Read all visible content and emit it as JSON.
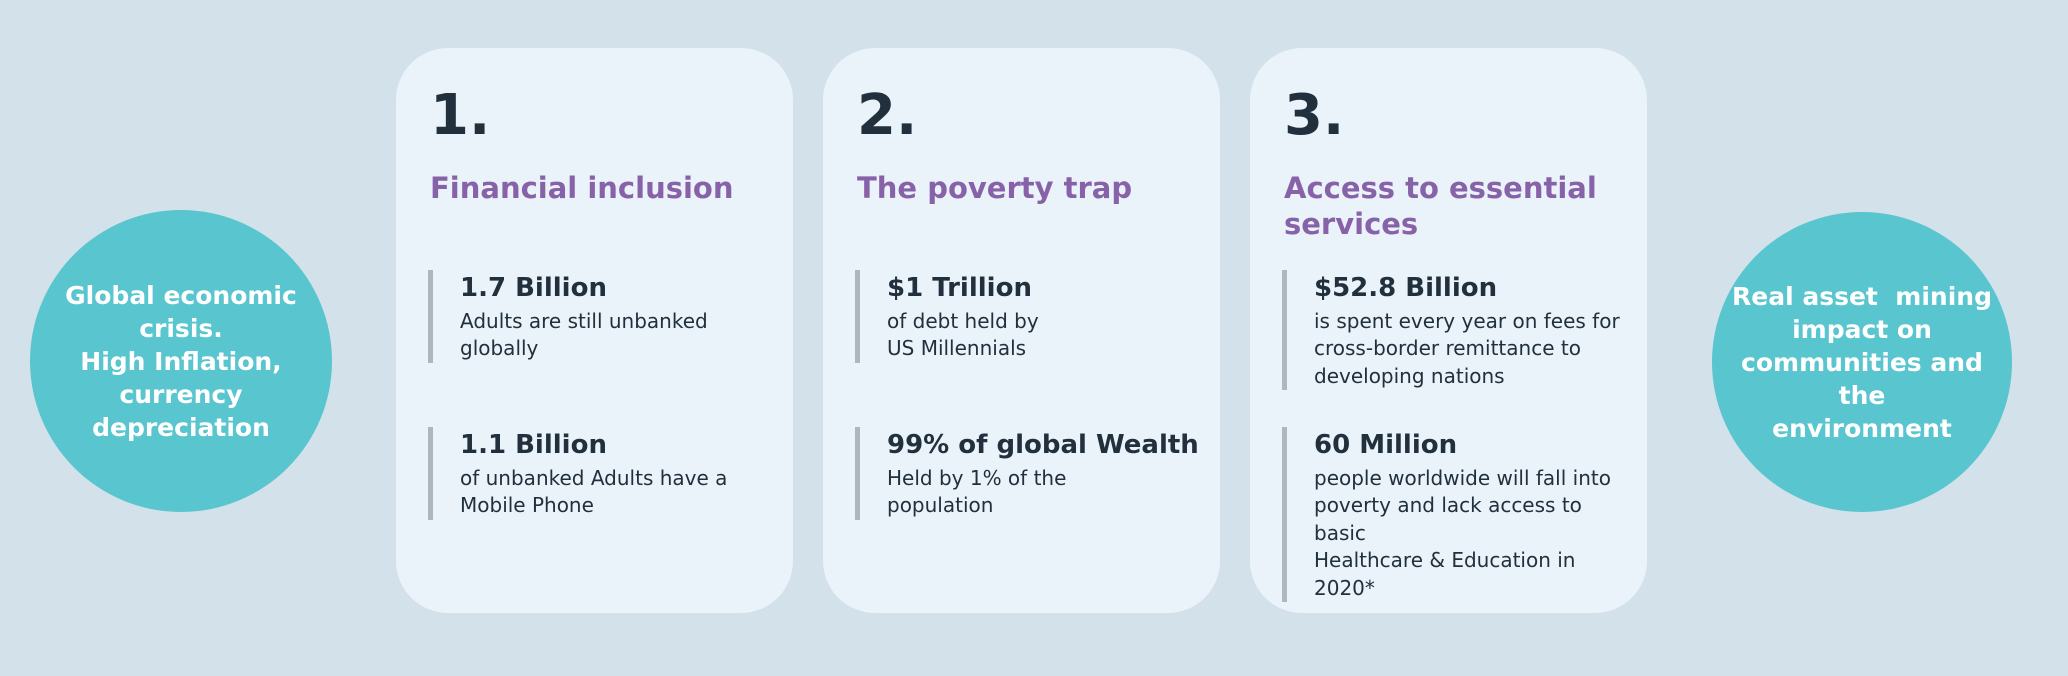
{
  "colors": {
    "background": "#d3e1ea",
    "card_background": "#e9f3f9",
    "bubble_teal": "#59c5cf",
    "heading_purple": "#8862a8",
    "text_dark": "#22303e",
    "stat_bar_gray": "#aeb7be",
    "bubble_text_white": "#ffffff"
  },
  "left_bubble": {
    "text": "Global economic\ncrisis.\nHigh Inflation,\ncurrency\ndepreciation"
  },
  "right_bubble": {
    "text": "Real asset  mining\nimpact on\ncommunities and the\nenvironment"
  },
  "cards": [
    {
      "number": "1.",
      "title": "Financial inclusion",
      "stats": [
        {
          "value": "1.7 Billion",
          "description": "Adults are still unbanked\nglobally"
        },
        {
          "value": "1.1 Billion",
          "description": "of unbanked Adults have a\nMobile Phone"
        }
      ]
    },
    {
      "number": "2.",
      "title": "The poverty trap",
      "stats": [
        {
          "value": "$1 Trillion",
          "description": "of debt held by\nUS Millennials"
        },
        {
          "value": "99% of global Wealth",
          "description": "Held by 1% of the\npopulation"
        }
      ]
    },
    {
      "number": "3.",
      "title": "Access to essential\nservices",
      "stats": [
        {
          "value": "$52.8 Billion",
          "description": "is spent every year on fees for\ncross-border remittance to\ndeveloping nations"
        },
        {
          "value": "60 Million",
          "description": "people worldwide will fall into\npoverty and lack access to basic\nHealthcare & Education in 2020*"
        }
      ]
    }
  ]
}
